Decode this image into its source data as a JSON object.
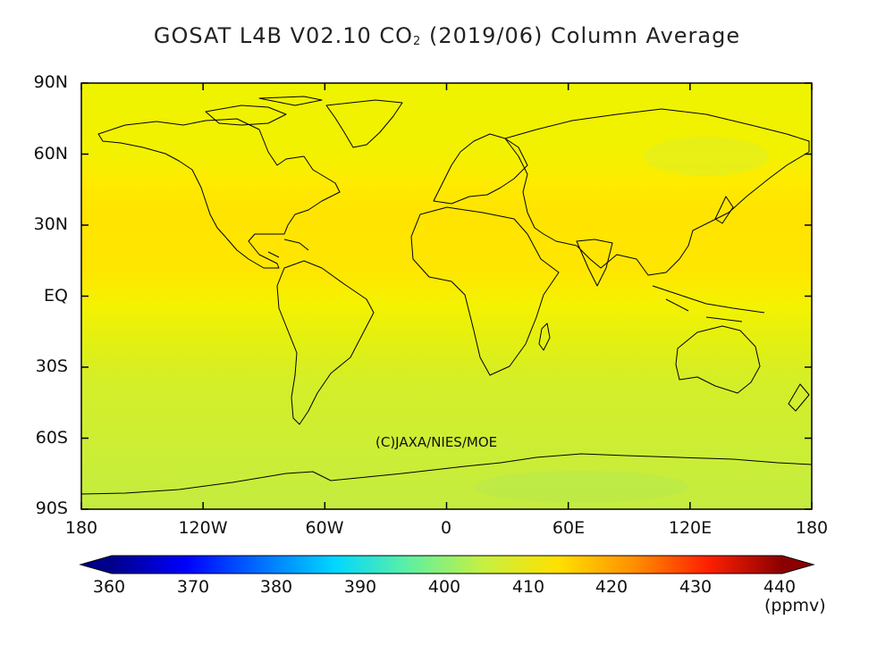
{
  "title": {
    "prefix": "GOSAT L4B V02.10 CO",
    "subscript": "2",
    "suffix": " (2019/06) Column Average"
  },
  "latitude_labels": [
    "90N",
    "60N",
    "30N",
    "EQ",
    "30S",
    "60S",
    "90S"
  ],
  "longitude_labels": [
    "180",
    "120W",
    "60W",
    "0",
    "60E",
    "120E",
    "180"
  ],
  "credit": "(C)JAXA/NIES/MOE",
  "colorbar": {
    "ticks": [
      "360",
      "370",
      "380",
      "390",
      "400",
      "410",
      "420",
      "430",
      "440"
    ],
    "unit": "(ppmv)",
    "min": 355,
    "max": 445,
    "stops": [
      "#00008b",
      "#0000ff",
      "#0070ff",
      "#00d8ff",
      "#60f0a0",
      "#c8f040",
      "#ffe000",
      "#ff9000",
      "#ff2000",
      "#8b0000"
    ]
  },
  "map_data": {
    "variable": "XCO2 column average",
    "units": "ppmv",
    "lat_range": [
      -90,
      90
    ],
    "lon_range": [
      -180,
      180
    ],
    "zonal_bands": [
      {
        "lat_from": 90,
        "lat_to": 60,
        "value": 410.5
      },
      {
        "lat_from": 60,
        "lat_to": 45,
        "value": 411
      },
      {
        "lat_from": 45,
        "lat_to": 10,
        "value": 412
      },
      {
        "lat_from": 10,
        "lat_to": -15,
        "value": 410
      },
      {
        "lat_from": -15,
        "lat_to": -40,
        "value": 408.5
      },
      {
        "lat_from": -40,
        "lat_to": -90,
        "value": 407
      }
    ],
    "colors": {
      "high_band": "#ffe500",
      "mid_band": "#eef000",
      "low_band": "#ccee30",
      "coastline": "#000000"
    }
  }
}
